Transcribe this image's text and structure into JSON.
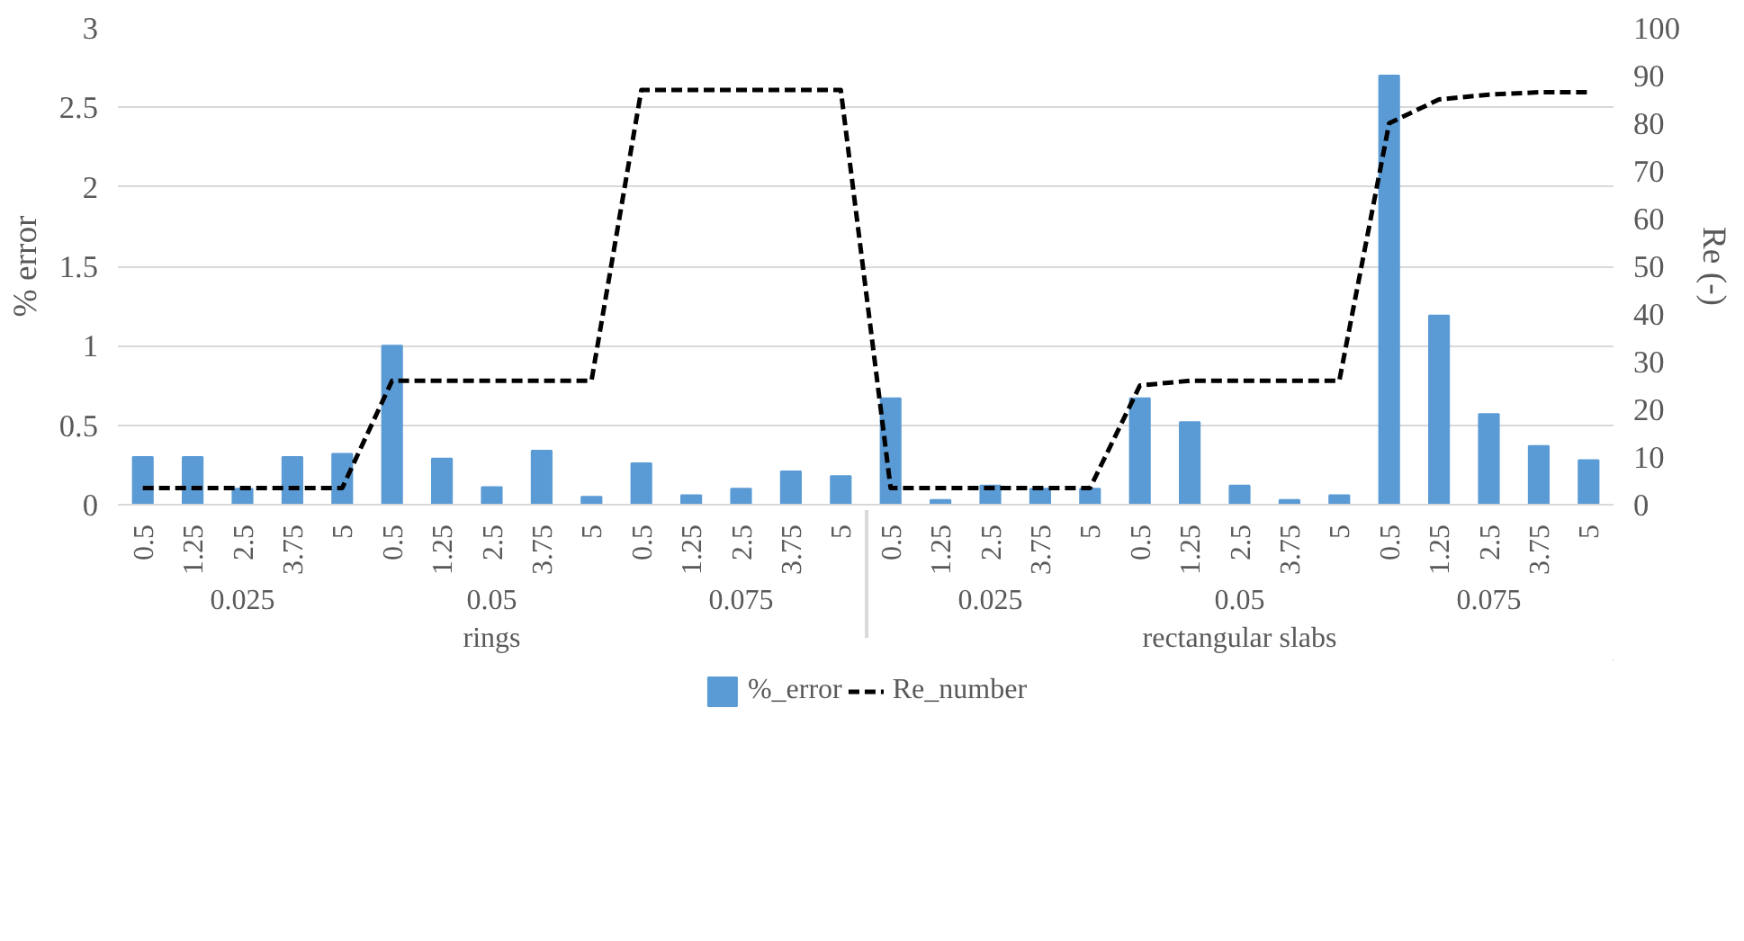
{
  "chart_data": {
    "type": "bar",
    "categories": [
      "0.5",
      "1.25",
      "2.5",
      "3.75",
      "5",
      "0.5",
      "1.25",
      "2.5",
      "3.75",
      "5",
      "0.5",
      "1.25",
      "2.5",
      "3.75",
      "5",
      "0.5",
      "1.25",
      "2.5",
      "3.75",
      "5",
      "0.5",
      "1.25",
      "2.5",
      "3.75",
      "5",
      "0.5",
      "1.25",
      "2.5",
      "3.75",
      "5"
    ],
    "annotations": [
      "0.025",
      "0.05",
      "0.075",
      "0.025",
      "0.05",
      "0.075",
      "rings",
      "rectangular slabs"
    ],
    "series": [
      {
        "name": "%_error",
        "color": "#5b9bd5",
        "values": [
          0.3,
          0.3,
          0.1,
          0.3,
          0.32,
          1.0,
          0.29,
          0.11,
          0.34,
          0.05,
          0.26,
          0.06,
          0.1,
          0.21,
          0.18,
          0.67,
          0.03,
          0.12,
          0.1,
          0.1,
          0.67,
          0.52,
          0.12,
          0.03,
          0.06,
          2.7,
          1.19,
          0.57,
          0.37,
          0.28
        ]
      },
      {
        "name": "Re_number",
        "type": "line",
        "axis": "y2",
        "color": "#000000",
        "line_style": "dashed",
        "values": [
          3.5,
          3.5,
          3.5,
          3.5,
          3.5,
          26,
          26,
          26,
          26,
          26,
          87,
          87,
          87,
          87,
          87,
          3.5,
          3.5,
          3.5,
          3.5,
          3.5,
          25,
          26,
          26,
          26,
          26,
          80,
          85,
          86,
          86.5,
          86.5
        ]
      }
    ],
    "ylabel": "% error",
    "y2label": "Re (-)",
    "ylim": [
      0,
      3
    ],
    "yticks": [
      0,
      0.5,
      1,
      1.5,
      2,
      2.5,
      3
    ],
    "y2lim": [
      0,
      100
    ],
    "y2ticks": [
      0,
      10,
      20,
      30,
      40,
      50,
      60,
      70,
      80,
      90,
      100
    ],
    "grid": "y",
    "legend": "bottom"
  }
}
